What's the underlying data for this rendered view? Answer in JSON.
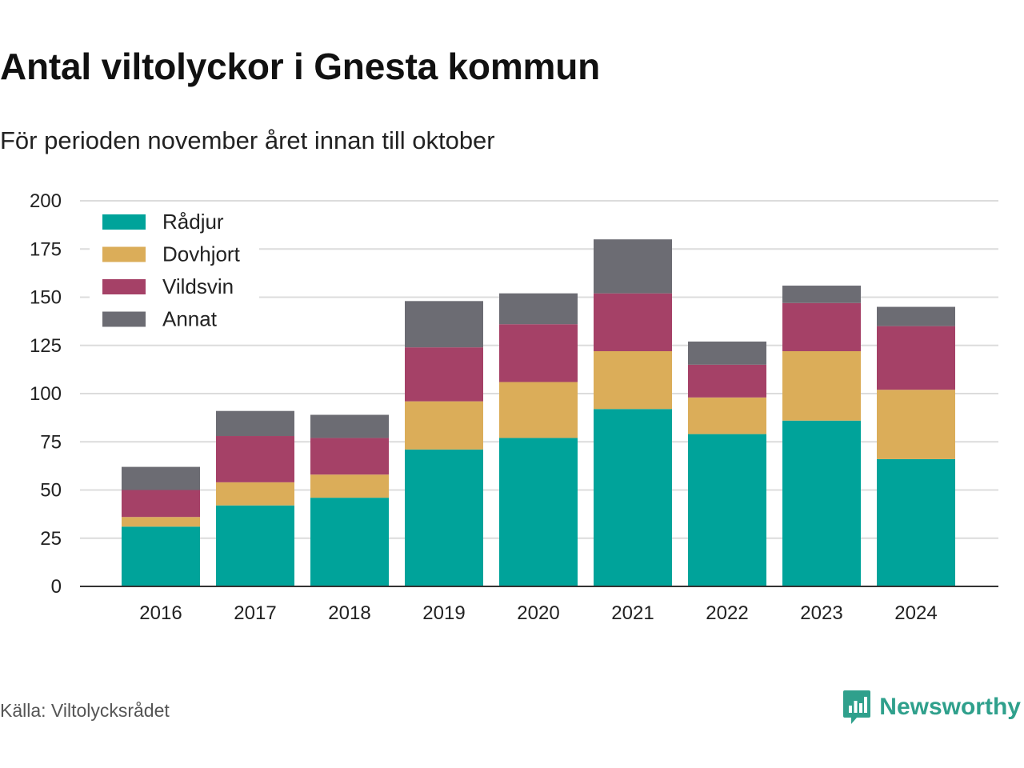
{
  "title": "Antal viltolyckor i Gnesta kommun",
  "subtitle": "För perioden november året innan till oktober",
  "source": "Källa: Viltolycksrådet",
  "brand": {
    "name": "Newsworthy",
    "logo_icon": "newsworthy-logo-icon",
    "color": "#2fa08c"
  },
  "chart_data": {
    "type": "bar",
    "stacked": true,
    "categories": [
      "2016",
      "2017",
      "2018",
      "2019",
      "2020",
      "2021",
      "2022",
      "2023",
      "2024"
    ],
    "series": [
      {
        "name": "Rådjur",
        "color": "#00a39a",
        "values": [
          31,
          42,
          46,
          71,
          77,
          92,
          79,
          86,
          66
        ]
      },
      {
        "name": "Dovhjort",
        "color": "#dbad59",
        "values": [
          5,
          12,
          12,
          25,
          29,
          30,
          19,
          36,
          36
        ]
      },
      {
        "name": "Vildsvin",
        "color": "#a54167",
        "values": [
          14,
          24,
          19,
          28,
          30,
          30,
          17,
          25,
          33
        ]
      },
      {
        "name": "Annat",
        "color": "#6c6c73",
        "values": [
          12,
          13,
          12,
          24,
          16,
          28,
          12,
          9,
          10
        ]
      }
    ],
    "yticks": [
      0,
      25,
      50,
      75,
      100,
      125,
      150,
      175,
      200
    ],
    "ylim": [
      0,
      200
    ],
    "grid": true,
    "legend": "top-left"
  }
}
